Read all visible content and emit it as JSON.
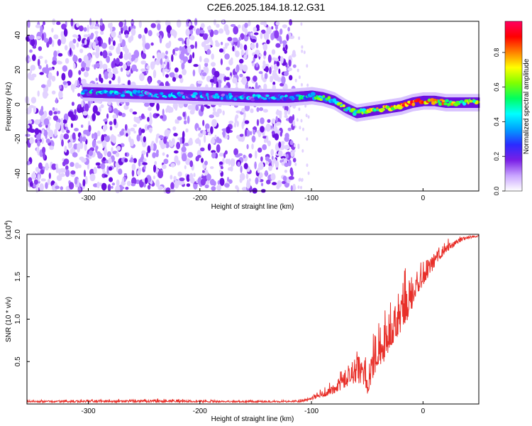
{
  "title": "C2E6.2025.184.18.12.G31",
  "colors": {
    "background": "#ffffff",
    "snr_line": "#e8302a",
    "noise_purple": "#7a1fe6",
    "ridge_mid": "#20d0ff"
  },
  "colorbar": {
    "label": "Normalized spectral amplitude",
    "ticks": [
      "0.0",
      "0.2",
      "0.4",
      "0.6",
      "0.8"
    ],
    "range": [
      0.0,
      0.98
    ],
    "colormap": [
      "#ffffff",
      "#c9a4ff",
      "#7a1fe6",
      "#2b2bff",
      "#00a0ff",
      "#00ffff",
      "#00ff60",
      "#80ff00",
      "#ffff00",
      "#ff8000",
      "#ff0000",
      "#ff0060"
    ]
  },
  "chart_data": [
    {
      "type": "heatmap",
      "xlabel": "Height of straight line (km)",
      "ylabel": "Frequency (Hz)",
      "xlim": [
        -355,
        50
      ],
      "ylim": [
        -50,
        48
      ],
      "xticks": [
        -300,
        -200,
        -100,
        0
      ],
      "yticks": [
        -40,
        -20,
        0,
        20,
        40
      ],
      "xtick_labels": [
        "-300",
        "-200",
        "-100",
        "0"
      ],
      "ytick_labels": [
        "-40",
        "-20",
        "0",
        "20",
        "40"
      ],
      "noise_region_x": [
        -355,
        -115
      ],
      "ridge_frequency_track": {
        "x": [
          -305,
          -250,
          -200,
          -150,
          -120,
          -100,
          -90,
          -80,
          -70,
          -60,
          -50,
          -40,
          -30,
          -20,
          -10,
          0,
          10,
          20,
          30,
          40,
          50
        ],
        "y": [
          7,
          6,
          5,
          4,
          4,
          5,
          4,
          2,
          -2,
          -5,
          -4,
          -3,
          -2,
          -1,
          1,
          2,
          2,
          1,
          1,
          1,
          1
        ]
      },
      "ridge_amplitude": {
        "x": [
          -305,
          -250,
          -200,
          -150,
          -120,
          -100,
          -90,
          -80,
          -70,
          -60,
          -50,
          -40,
          -30,
          -20,
          -10,
          0,
          10,
          20,
          30,
          40,
          50
        ],
        "y": [
          0.35,
          0.3,
          0.3,
          0.3,
          0.35,
          0.45,
          0.5,
          0.5,
          0.55,
          0.55,
          0.6,
          0.65,
          0.7,
          0.8,
          0.9,
          0.8,
          0.7,
          0.7,
          0.65,
          0.6,
          0.6
        ]
      }
    },
    {
      "type": "line",
      "xlabel": "Height of straight line (km)",
      "ylabel": "SNR (10 * v/v)",
      "y_multiplier_label": "(x10",
      "y_multiplier_exp": "4",
      "y_multiplier_close": ")",
      "xlim": [
        -355,
        50
      ],
      "ylim": [
        0,
        2.0
      ],
      "xticks": [
        -300,
        -200,
        -100,
        0
      ],
      "yticks": [
        0.5,
        1.0,
        1.5,
        2.0
      ],
      "xtick_labels": [
        "-300",
        "-200",
        "-100",
        "0"
      ],
      "ytick_labels": [
        "0.5",
        "1.0",
        "1.5",
        "2.0"
      ],
      "series": [
        {
          "color": "#e8302a",
          "x": [
            -355,
            -300,
            -250,
            -200,
            -150,
            -120,
            -110,
            -100,
            -90,
            -80,
            -70,
            -60,
            -55,
            -50,
            -45,
            -40,
            -35,
            -30,
            -25,
            -20,
            -15,
            -10,
            -5,
            0,
            5,
            10,
            15,
            20,
            25,
            30,
            35,
            40,
            45,
            50
          ],
          "envelope_low": [
            0.02,
            0.02,
            0.02,
            0.02,
            0.02,
            0.02,
            0.02,
            0.05,
            0.08,
            0.12,
            0.18,
            0.25,
            0.2,
            0.1,
            0.3,
            0.45,
            0.5,
            0.65,
            0.75,
            0.85,
            0.95,
            1.1,
            1.3,
            1.4,
            1.5,
            1.6,
            1.7,
            1.78,
            1.82,
            1.88,
            1.92,
            1.95,
            1.96,
            1.97
          ],
          "envelope_high": [
            0.05,
            0.06,
            0.07,
            0.06,
            0.05,
            0.05,
            0.06,
            0.1,
            0.2,
            0.35,
            0.5,
            0.7,
            0.9,
            0.55,
            0.95,
            1.2,
            1.3,
            1.35,
            1.45,
            1.55,
            1.75,
            1.75,
            1.6,
            1.75,
            1.85,
            1.9,
            1.9,
            1.95,
            1.97,
            1.98,
            1.99,
            2.0,
            2.0,
            2.0
          ]
        }
      ]
    }
  ]
}
